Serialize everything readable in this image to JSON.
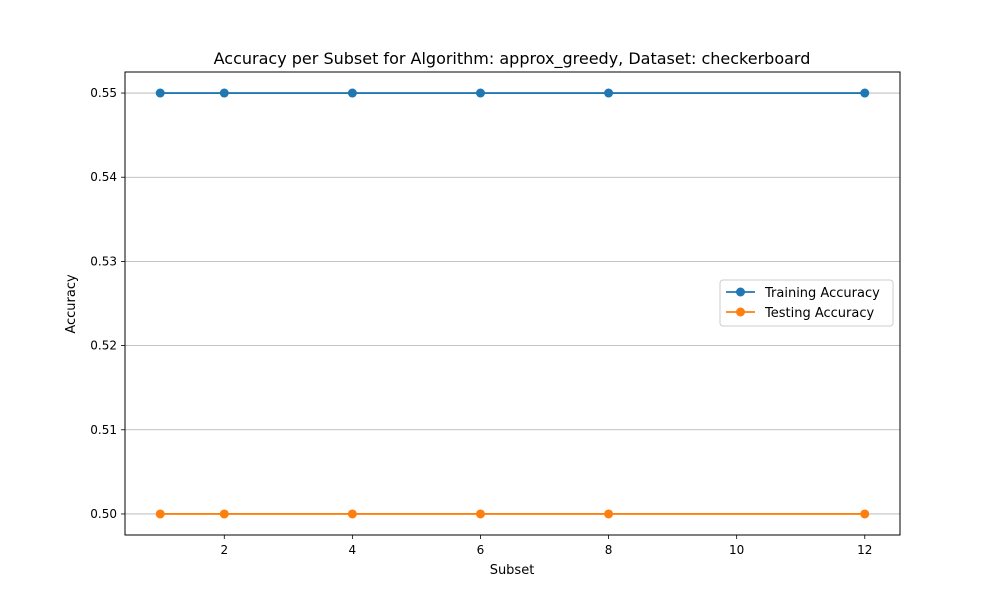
{
  "chart_data": {
    "type": "line",
    "title": "Accuracy per Subset for Algorithm: approx_greedy, Dataset: checkerboard",
    "xlabel": "Subset",
    "ylabel": "Accuracy",
    "xlim": [
      0.45,
      12.55
    ],
    "ylim": [
      0.4975,
      0.5525
    ],
    "x_ticks": [
      2,
      4,
      6,
      8,
      10,
      12
    ],
    "y_ticks": [
      0.5,
      0.51,
      0.52,
      0.53,
      0.54,
      0.55
    ],
    "y_tick_labels": [
      "0.50",
      "0.51",
      "0.52",
      "0.53",
      "0.54",
      "0.55"
    ],
    "grid": {
      "y": true,
      "x": false
    },
    "legend_position": "center-right",
    "x": [
      1,
      2,
      4,
      6,
      8,
      12
    ],
    "series": [
      {
        "name": "Training Accuracy",
        "color": "#1f77b4",
        "marker": "circle",
        "values": [
          0.55,
          0.55,
          0.55,
          0.55,
          0.55,
          0.55
        ]
      },
      {
        "name": "Testing Accuracy",
        "color": "#ff7f0e",
        "marker": "circle",
        "values": [
          0.5,
          0.5,
          0.5,
          0.5,
          0.5,
          0.5
        ]
      }
    ]
  }
}
